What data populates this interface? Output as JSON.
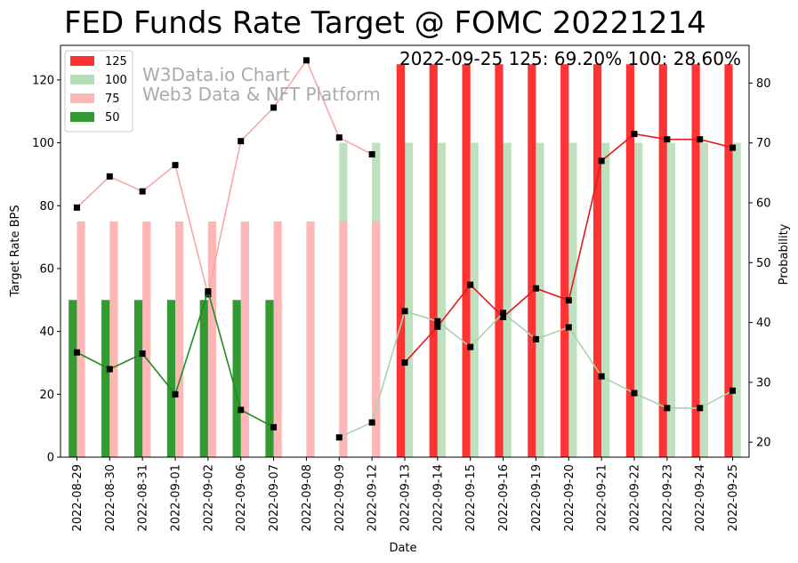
{
  "chart_data": {
    "type": "bar+line",
    "title": "FED Funds Rate Target @ FOMC 20221214",
    "xlabel": "Date",
    "ylabel_left": "Target Rate BPS",
    "ylabel_right": "Probability",
    "ylim_left": [
      0,
      131
    ],
    "ylim_right": [
      17.5,
      86.3
    ],
    "yticks_left": [
      "0",
      "20",
      "40",
      "60",
      "80",
      "100",
      "120"
    ],
    "yticks_right": [
      "20",
      "30",
      "40",
      "50",
      "60",
      "70",
      "80"
    ],
    "annotation": "2022-09-25 125: 69.20% 100: 28.60%",
    "watermark": [
      "W3Data.io Chart",
      "Web3 Data & NFT Platform"
    ],
    "legend_position": "top-left",
    "dates": [
      "2022-08-29",
      "2022-08-30",
      "2022-08-31",
      "2022-09-01",
      "2022-09-02",
      "2022-09-06",
      "2022-09-07",
      "2022-09-08",
      "2022-09-09",
      "2022-09-12",
      "2022-09-13",
      "2022-09-14",
      "2022-09-15",
      "2022-09-16",
      "2022-09-19",
      "2022-09-20",
      "2022-09-21",
      "2022-09-22",
      "2022-09-23",
      "2022-09-24",
      "2022-09-25"
    ],
    "series": [
      {
        "name": "125",
        "rate": 125,
        "color": "#ff3333",
        "probabilities": [
          null,
          null,
          null,
          null,
          null,
          null,
          null,
          null,
          null,
          null,
          33.3,
          39.3,
          46.3,
          40.9,
          45.7,
          43.7,
          67.0,
          71.5,
          70.6,
          70.6,
          69.2
        ]
      },
      {
        "name": "100",
        "rate": 100,
        "color": "#b9ddb9",
        "probabilities": [
          null,
          null,
          null,
          null,
          null,
          null,
          null,
          null,
          20.8,
          23.3,
          41.9,
          40.2,
          35.9,
          41.6,
          37.2,
          39.2,
          31.0,
          28.2,
          25.7,
          25.7,
          28.6
        ]
      },
      {
        "name": "75",
        "rate": 75,
        "color": "#ffb6b6",
        "probabilities": [
          59.2,
          64.4,
          61.9,
          66.3,
          44.7,
          70.3,
          75.9,
          83.8,
          70.9,
          68.1,
          null,
          null,
          null,
          null,
          null,
          null,
          null,
          null,
          null,
          null,
          null
        ]
      },
      {
        "name": "50",
        "rate": 50,
        "color": "#339933",
        "probabilities": [
          35.0,
          32.2,
          34.8,
          28.0,
          45.2,
          25.4,
          22.5,
          null,
          null,
          null,
          null,
          null,
          null,
          null,
          null,
          null,
          null,
          null,
          null,
          null,
          null
        ]
      }
    ],
    "line_colors": {
      "125": "#e51919",
      "100": "#a8d4a8",
      "75": "#f5a8a8",
      "50": "#1e8c1e"
    }
  }
}
